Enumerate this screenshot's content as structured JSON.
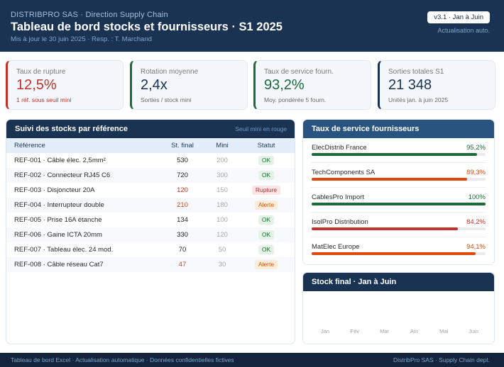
{
  "header": {
    "org": "DISTRIBPRO SAS · Direction Supply Chain",
    "title": "Tableau de bord stocks et fournisseurs · S1 2025",
    "subtitle": "Mis à jour le 30 juin 2025 · Resp. : T. Marchand",
    "version_badge": "v3.1 · Jan à Juin",
    "refresh_note": "Actualisation auto."
  },
  "kpis": [
    {
      "label": "Taux de rupture",
      "value": "12,5%",
      "sub": "1 réf. sous seuil mini",
      "accent": "#c0322b",
      "value_color": "#c0322b",
      "sub_color": "#c0322b"
    },
    {
      "label": "Rotation moyenne",
      "value": "2,4x",
      "sub": "Sorties / stock mini",
      "accent": "#1d6b3a",
      "value_color": "#1b3352",
      "sub_color": "#6a6a6a"
    },
    {
      "label": "Taux de service fourn.",
      "value": "93,2%",
      "sub": "Moy. pondérée 5 fourn.",
      "accent": "#1d6b3a",
      "value_color": "#1d6b3a",
      "sub_color": "#6a6a6a"
    },
    {
      "label": "Sorties totales S1",
      "value": "21 348",
      "sub": "Unités jan. à juin 2025",
      "accent": "#1b3352",
      "value_color": "#1b3352",
      "sub_color": "#6a6a6a"
    }
  ],
  "stock_table": {
    "title": "Suivi des stocks par référence",
    "note": "Seuil mini en rouge",
    "columns": [
      "Référence",
      "St. final",
      "Mini",
      "Statut"
    ],
    "rows": [
      {
        "ref": "REF-001 · Câble élec. 2,5mm²",
        "stock": "530",
        "mini": "200",
        "status": "OK",
        "level": "ok"
      },
      {
        "ref": "REF-002 · Connecteur RJ45 C6",
        "stock": "720",
        "mini": "300",
        "status": "OK",
        "level": "ok"
      },
      {
        "ref": "REF-003 · Disjoncteur 20A",
        "stock": "120",
        "mini": "150",
        "status": "Rupture",
        "level": "rupture"
      },
      {
        "ref": "REF-004 · Interrupteur double",
        "stock": "210",
        "mini": "180",
        "status": "Alerte",
        "level": "alerte"
      },
      {
        "ref": "REF-005 · Prise 16A étanche",
        "stock": "134",
        "mini": "100",
        "status": "OK",
        "level": "ok"
      },
      {
        "ref": "REF-006 · Gaine ICTA 20mm",
        "stock": "330",
        "mini": "120",
        "status": "OK",
        "level": "ok"
      },
      {
        "ref": "REF-007 · Tableau élec. 24 mod.",
        "stock": "70",
        "mini": "50",
        "status": "OK",
        "level": "ok"
      },
      {
        "ref": "REF-008 · Câble réseau Cat7",
        "stock": "47",
        "mini": "30",
        "status": "Alerte",
        "level": "alerte"
      }
    ]
  },
  "suppliers": {
    "title": "Taux de service fournisseurs",
    "items": [
      {
        "name": "ElecDistrib France",
        "pct_label": "95,2%",
        "pct": 95.2,
        "color": "#1d6b3a"
      },
      {
        "name": "TechComponents SA",
        "pct_label": "89,3%",
        "pct": 89.3,
        "color": "#df4a0c"
      },
      {
        "name": "CablesPro Import",
        "pct_label": "100%",
        "pct": 100,
        "color": "#1d6b3a"
      },
      {
        "name": "IsolPro Distribution",
        "pct_label": "84,2%",
        "pct": 84.2,
        "color": "#c0322b"
      },
      {
        "name": "MatElec Europe",
        "pct_label": "94,1%",
        "pct": 94.1,
        "color": "#df4a0c"
      }
    ]
  },
  "stock_chart": {
    "title": "Stock final · Jan à Juin",
    "months": [
      "Jan",
      "Fév",
      "Mar",
      "Avr",
      "Mai",
      "Juin"
    ]
  },
  "footer": {
    "left": "Tableau de bord Excel · Actualisation automatique · Données confidentielles fictives",
    "right": "DistribPro SAS · Supply Chain dept."
  },
  "colors": {
    "navy": "#1b3352",
    "ok": "#1d6b3a",
    "alert": "#df4a0c",
    "rupture": "#c0322b"
  }
}
